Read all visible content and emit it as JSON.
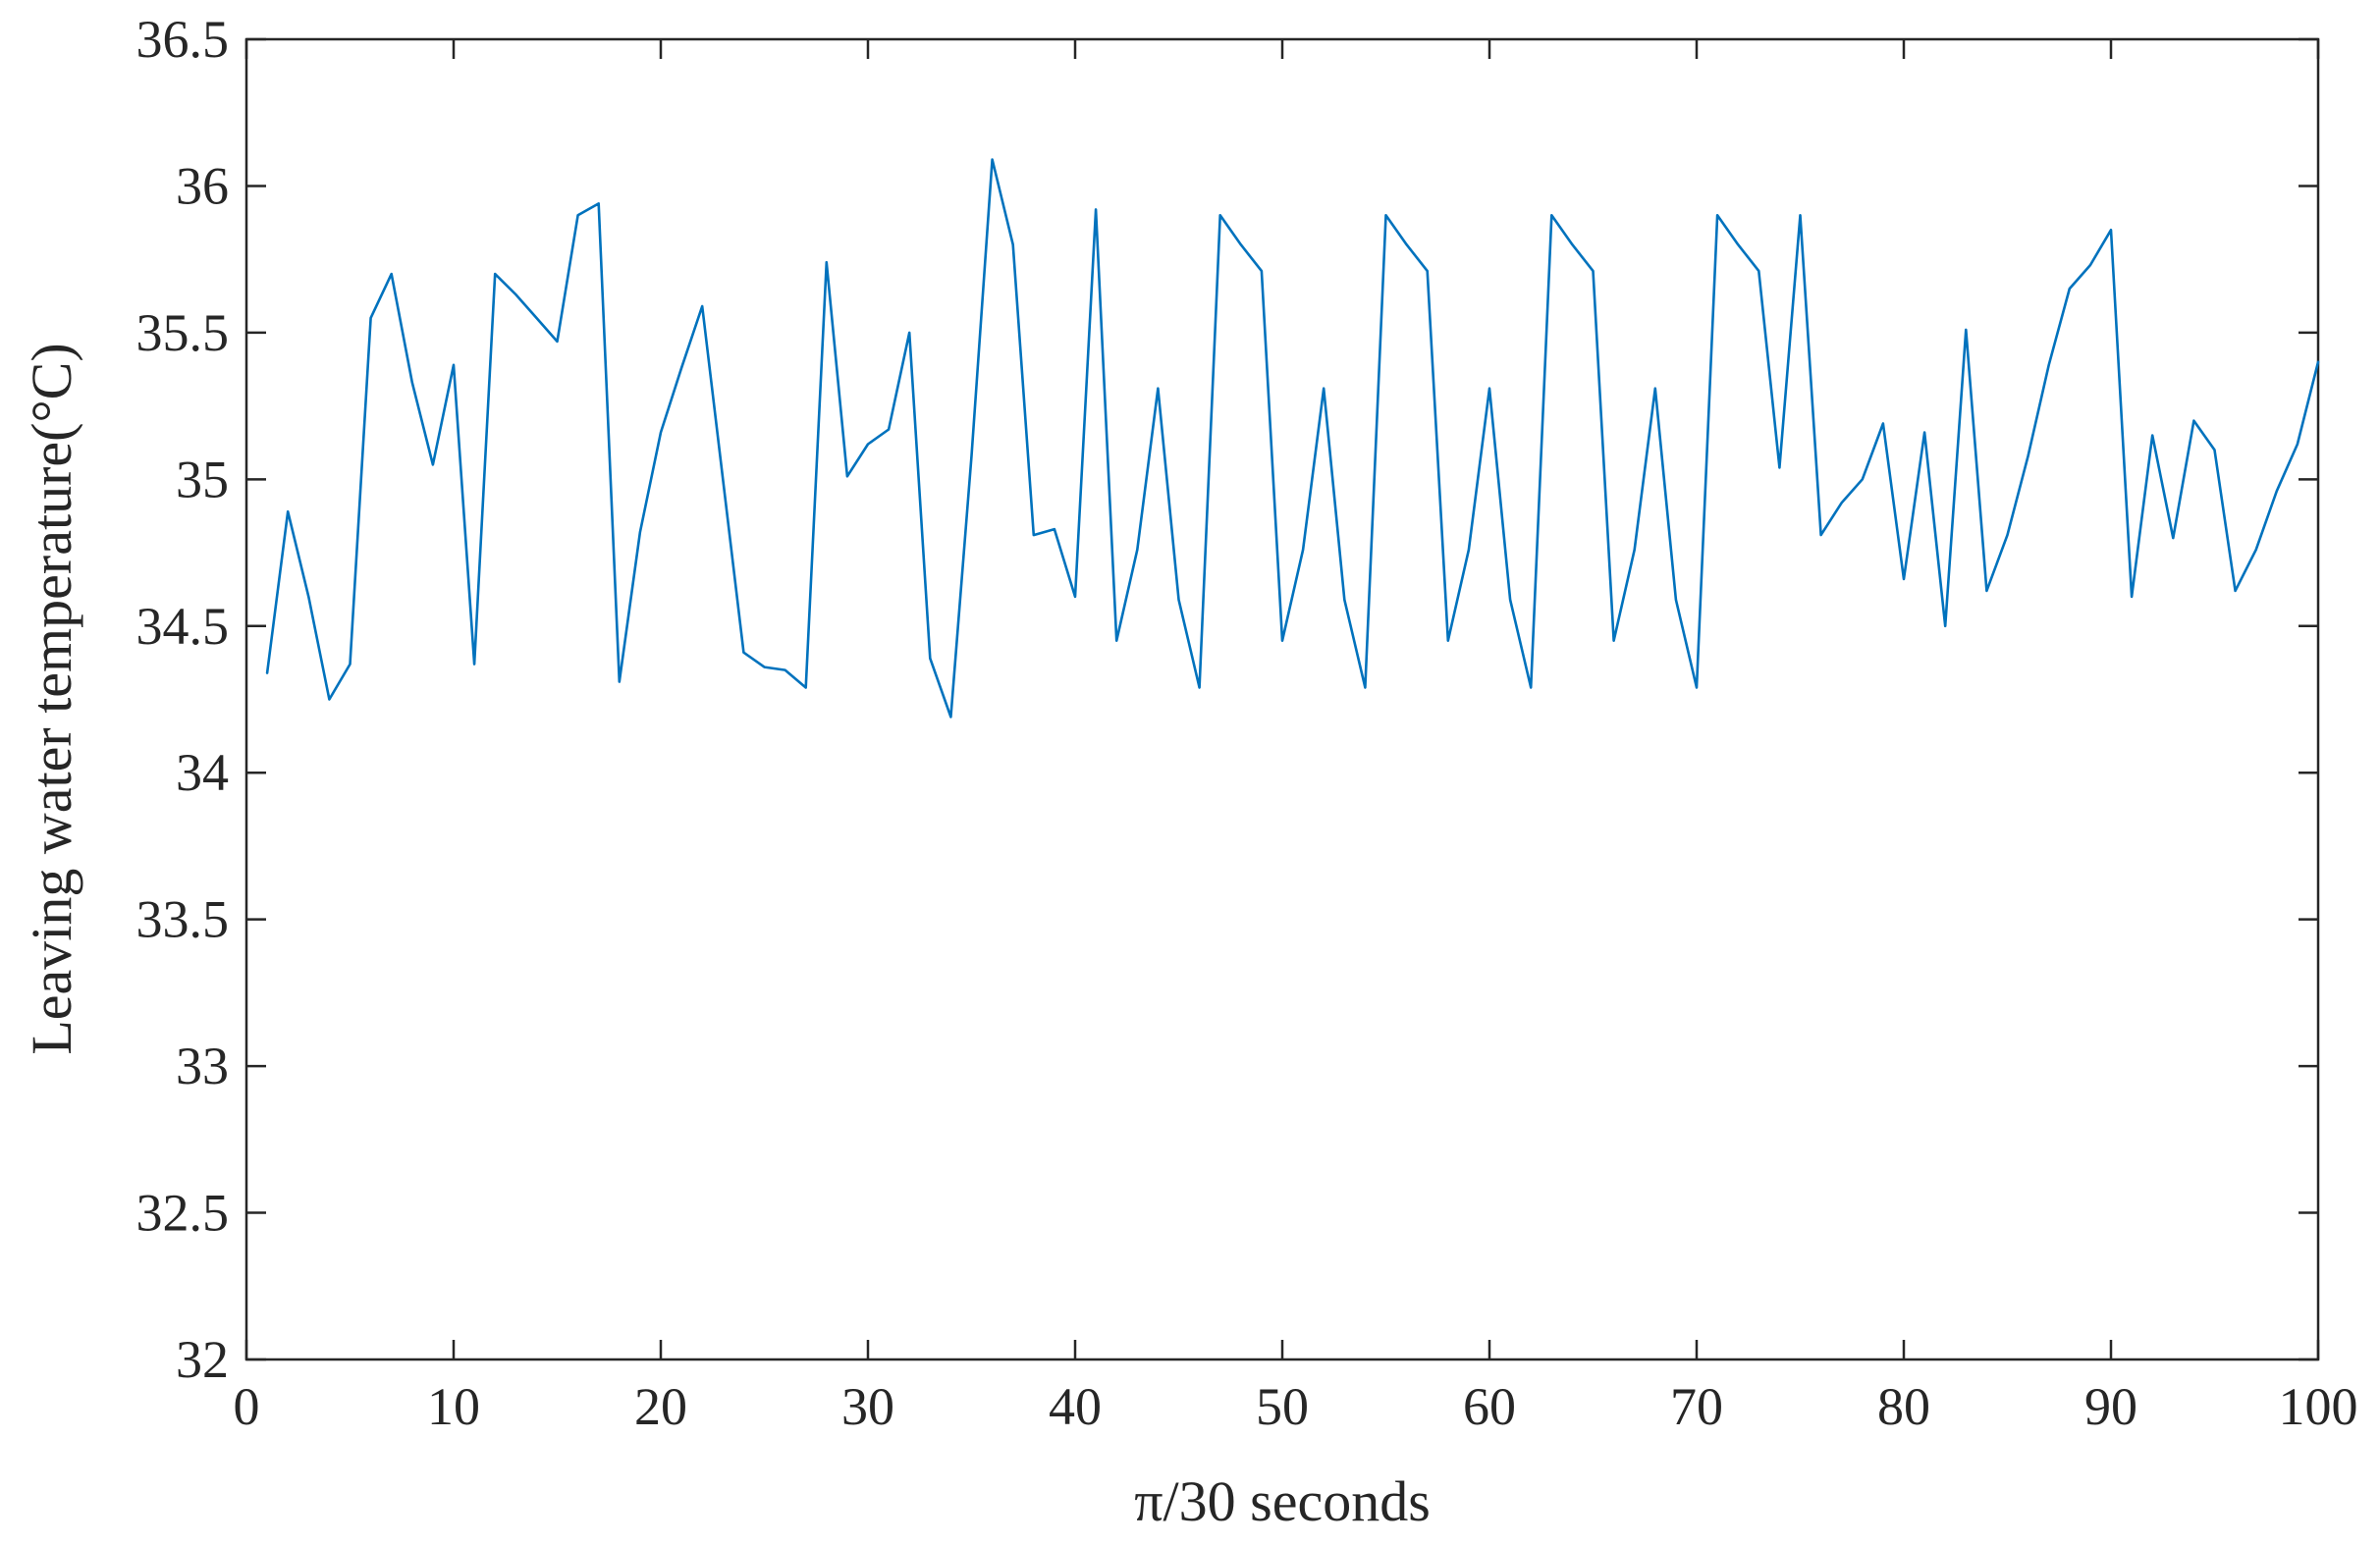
{
  "chart_data": {
    "type": "line",
    "title": "",
    "xlabel": "π/30 seconds",
    "ylabel": "Leaving water temperature(°C)",
    "xlim": [
      0,
      100
    ],
    "ylim": [
      32,
      36.5
    ],
    "x_ticks": [
      0,
      10,
      20,
      30,
      40,
      50,
      60,
      70,
      80,
      90,
      100
    ],
    "x_tick_labels": [
      "0",
      "10",
      "20",
      "30",
      "40",
      "50",
      "60",
      "70",
      "80",
      "90",
      "100"
    ],
    "y_ticks": [
      32,
      32.5,
      33,
      33.5,
      34,
      34.5,
      35,
      35.5,
      36,
      36.5
    ],
    "y_tick_labels": [
      "32",
      "32.5",
      "33",
      "33.5",
      "34",
      "34.5",
      "35",
      "35.5",
      "36",
      "36.5"
    ],
    "grid": false,
    "legend": "none",
    "series": [
      {
        "color": "#0072BD",
        "x": [
          1,
          2,
          3,
          4,
          5,
          6,
          7,
          8,
          9,
          10,
          11,
          12,
          13,
          14,
          15,
          16,
          17,
          18,
          19,
          20,
          21,
          22,
          23,
          24,
          25,
          26,
          27,
          28,
          29,
          30,
          31,
          32,
          33,
          34,
          35,
          36,
          37,
          38,
          39,
          40,
          41,
          42,
          43,
          44,
          45,
          46,
          47,
          48,
          49,
          50,
          51,
          52,
          53,
          54,
          55,
          56,
          57,
          58,
          59,
          60,
          61,
          62,
          63,
          64,
          65,
          66,
          67,
          68,
          69,
          70,
          71,
          72,
          73,
          74,
          75,
          76,
          77,
          78,
          79,
          80,
          81,
          82,
          83,
          84,
          85,
          86,
          87,
          88,
          89,
          90,
          91,
          92,
          93,
          94,
          95,
          96,
          97,
          98,
          99,
          100
        ],
        "values": [
          34.34,
          34.89,
          34.6,
          34.25,
          34.37,
          35.55,
          35.7,
          35.33,
          35.05,
          35.39,
          34.37,
          35.7,
          35.63,
          35.55,
          35.47,
          35.9,
          35.94,
          34.31,
          34.82,
          35.16,
          35.38,
          35.59,
          35.0,
          34.41,
          34.36,
          34.35,
          34.29,
          35.74,
          35.01,
          35.12,
          35.17,
          35.5,
          34.39,
          34.19,
          35.08,
          36.09,
          35.8,
          34.81,
          34.83,
          34.6,
          35.92,
          34.45,
          34.76,
          35.31,
          34.59,
          34.29,
          35.9,
          35.8,
          35.71,
          34.45,
          34.76,
          35.31,
          34.59,
          34.29,
          35.9,
          35.8,
          35.71,
          34.45,
          34.76,
          35.31,
          34.59,
          34.29,
          35.9,
          35.8,
          35.71,
          34.45,
          34.76,
          35.31,
          34.59,
          34.29,
          35.9,
          35.8,
          35.71,
          35.04,
          35.9,
          34.81,
          34.92,
          35.0,
          35.19,
          34.66,
          35.16,
          34.5,
          35.51,
          34.62,
          34.81,
          35.08,
          35.39,
          35.65,
          35.73,
          35.85,
          34.6,
          35.15,
          34.8,
          35.2,
          35.1,
          34.62,
          34.76,
          34.96,
          35.12,
          35.4
        ]
      }
    ]
  }
}
